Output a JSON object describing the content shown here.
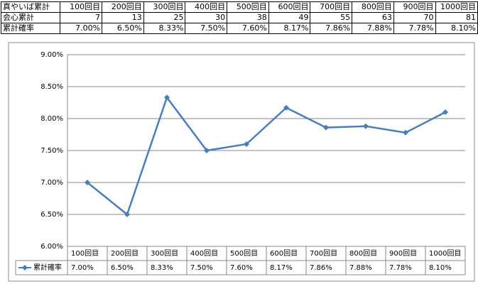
{
  "table": {
    "columns": [
      "真やいば累計",
      "100回目",
      "200回目",
      "300回目",
      "400回目",
      "500回目",
      "600回目",
      "700回目",
      "800回目",
      "900回目",
      "1000回目"
    ],
    "rows": [
      [
        "会心累計",
        7,
        13,
        25,
        30,
        38,
        49,
        55,
        63,
        70,
        81
      ],
      [
        "累計確率",
        "7.00%",
        "6.50%",
        "8.33%",
        "7.50%",
        "7.60%",
        "8.17%",
        "7.86%",
        "7.88%",
        "7.78%",
        "8.10%"
      ]
    ]
  },
  "chart_data": {
    "type": "line",
    "categories": [
      "100回目",
      "200回目",
      "300回目",
      "400回目",
      "500回目",
      "600回目",
      "700回目",
      "800回目",
      "900回目",
      "1000回目"
    ],
    "series": [
      {
        "name": "累計確率",
        "color": "#4a7ebb",
        "values": [
          7.0,
          6.5,
          8.33,
          7.5,
          7.6,
          8.17,
          7.86,
          7.88,
          7.78,
          8.1
        ],
        "value_labels": [
          "7.00%",
          "6.50%",
          "8.33%",
          "7.50%",
          "7.60%",
          "8.17%",
          "7.86%",
          "7.88%",
          "7.78%",
          "8.10%"
        ]
      }
    ],
    "ylim": [
      6,
      9
    ],
    "yticks": [
      {
        "value": 6,
        "label": "6.00%"
      },
      {
        "value": 6.5,
        "label": "6.50%"
      },
      {
        "value": 7,
        "label": "7.00%"
      },
      {
        "value": 7.5,
        "label": "7.50%"
      },
      {
        "value": 8,
        "label": "8.00%"
      },
      {
        "value": 8.5,
        "label": "8.50%"
      },
      {
        "value": 9,
        "label": "9.00%"
      }
    ],
    "grid": true
  }
}
